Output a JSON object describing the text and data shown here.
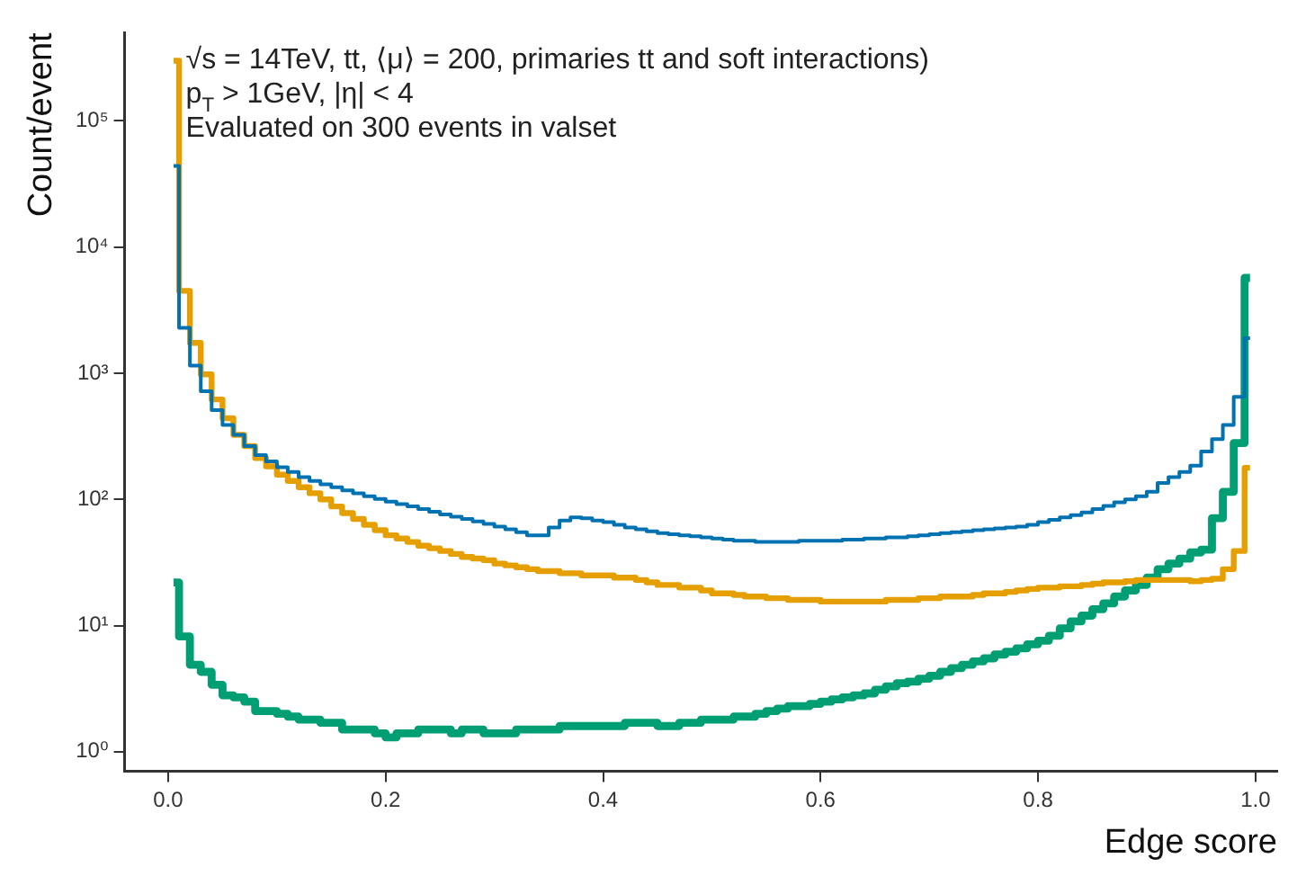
{
  "chart_data": {
    "type": "step",
    "xlabel": "Edge score",
    "ylabel": "Count/event",
    "annotations": [
      "√s = 14TeV, tt, ⟨μ⟩ = 200, primaries tt and soft interactions)",
      "p$_{T}$ > 1GeV, |η| < 4",
      "Evaluated on 300 events in valset"
    ],
    "x": [
      0.005,
      0.015,
      0.025,
      0.035,
      0.045,
      0.055,
      0.065,
      0.075,
      0.085,
      0.095,
      0.105,
      0.115,
      0.125,
      0.135,
      0.145,
      0.155,
      0.165,
      0.175,
      0.185,
      0.195,
      0.205,
      0.215,
      0.225,
      0.235,
      0.245,
      0.255,
      0.265,
      0.275,
      0.285,
      0.295,
      0.305,
      0.315,
      0.325,
      0.335,
      0.345,
      0.355,
      0.365,
      0.375,
      0.385,
      0.395,
      0.405,
      0.415,
      0.425,
      0.435,
      0.445,
      0.455,
      0.465,
      0.475,
      0.485,
      0.495,
      0.505,
      0.515,
      0.525,
      0.535,
      0.545,
      0.555,
      0.565,
      0.575,
      0.585,
      0.595,
      0.605,
      0.615,
      0.625,
      0.635,
      0.645,
      0.655,
      0.665,
      0.675,
      0.685,
      0.695,
      0.705,
      0.715,
      0.725,
      0.735,
      0.745,
      0.755,
      0.765,
      0.775,
      0.785,
      0.795,
      0.805,
      0.815,
      0.825,
      0.835,
      0.845,
      0.855,
      0.865,
      0.875,
      0.885,
      0.895,
      0.905,
      0.915,
      0.925,
      0.935,
      0.945,
      0.955,
      0.965,
      0.975,
      0.985,
      0.995
    ],
    "series": [
      {
        "color": "#0072b2",
        "values": [
          44000,
          2290,
          1150,
          720,
          510,
          390,
          325,
          265,
          225,
          200,
          180,
          165,
          150,
          140,
          132,
          125,
          118,
          112,
          106,
          101,
          96,
          92,
          88,
          84,
          80,
          76,
          73,
          70,
          67,
          64,
          61,
          58,
          55,
          52,
          52,
          60,
          68,
          72,
          71,
          68,
          66,
          63,
          60,
          58,
          56,
          54,
          53,
          52,
          51,
          50,
          49,
          48,
          47,
          47,
          46,
          46,
          46,
          46,
          47,
          47,
          47,
          47,
          48,
          48,
          49,
          49,
          50,
          50,
          51,
          52,
          53,
          54,
          55,
          56,
          57,
          58,
          59,
          60,
          61,
          63,
          66,
          69,
          72,
          75,
          79,
          84,
          89,
          95,
          100,
          106,
          115,
          135,
          150,
          165,
          185,
          240,
          300,
          390,
          650,
          1900
        ]
      },
      {
        "color": "#e69f00",
        "values": [
          300000,
          4500,
          1740,
          980,
          620,
          440,
          325,
          265,
          213,
          183,
          157,
          140,
          125,
          112,
          100,
          88,
          78,
          70,
          63,
          57,
          52,
          49,
          46,
          43,
          41,
          39,
          37,
          35,
          34,
          33,
          31,
          30,
          29,
          28,
          27,
          27,
          26,
          26,
          25,
          25,
          25,
          24,
          24,
          23,
          22,
          21,
          21,
          20,
          20,
          19,
          18,
          18,
          17.5,
          17,
          17,
          16.5,
          16.5,
          16,
          16,
          16,
          15.5,
          15.5,
          15.5,
          15.5,
          15.5,
          15.5,
          16,
          16,
          16,
          16.5,
          16.5,
          17,
          17,
          17,
          17.5,
          18,
          18,
          18.5,
          19,
          19.5,
          20,
          20,
          20.5,
          20.5,
          21,
          21.5,
          22,
          22,
          22.5,
          23,
          23,
          23,
          23,
          23,
          22.5,
          23,
          23.5,
          28,
          39,
          178
        ]
      },
      {
        "color": "#009e73",
        "values": [
          22,
          8.2,
          4.9,
          4.3,
          3.4,
          2.8,
          2.7,
          2.5,
          2.1,
          2.1,
          2.0,
          1.9,
          1.8,
          1.8,
          1.7,
          1.7,
          1.5,
          1.5,
          1.5,
          1.4,
          1.3,
          1.4,
          1.4,
          1.5,
          1.5,
          1.5,
          1.4,
          1.5,
          1.5,
          1.4,
          1.4,
          1.4,
          1.5,
          1.5,
          1.5,
          1.5,
          1.6,
          1.6,
          1.6,
          1.6,
          1.6,
          1.6,
          1.7,
          1.7,
          1.7,
          1.6,
          1.6,
          1.7,
          1.7,
          1.8,
          1.8,
          1.8,
          1.9,
          1.9,
          2.0,
          2.1,
          2.2,
          2.3,
          2.3,
          2.4,
          2.5,
          2.6,
          2.7,
          2.8,
          2.9,
          3.1,
          3.3,
          3.5,
          3.6,
          3.8,
          4.0,
          4.3,
          4.6,
          4.9,
          5.2,
          5.5,
          5.9,
          6.2,
          6.6,
          7.1,
          7.6,
          8.3,
          9.5,
          10.8,
          12,
          13.5,
          15,
          17,
          19,
          21,
          24,
          28,
          31,
          34,
          38,
          40,
          71,
          115,
          280,
          5700
        ]
      }
    ],
    "xlim": [
      -0.04,
      1.02
    ],
    "xticks": [
      {
        "value": 0,
        "label": "0.0"
      },
      {
        "value": 0.2,
        "label": "0.2"
      },
      {
        "value": 0.4,
        "label": "0.4"
      },
      {
        "value": 0.6,
        "label": "0.6"
      },
      {
        "value": 0.8,
        "label": "0.8"
      },
      {
        "value": 1,
        "label": "1.0"
      }
    ],
    "ylim": [
      0.7,
      500000
    ],
    "yticks": [
      {
        "value": 1,
        "label": "10⁰"
      },
      {
        "value": 10,
        "label": "10¹"
      },
      {
        "value": 100,
        "label": "10²"
      },
      {
        "value": 1000,
        "label": "10³"
      },
      {
        "value": 10000,
        "label": "10⁴"
      },
      {
        "value": 100000,
        "label": "10⁵"
      }
    ],
    "log": "y",
    "grid": false,
    "legend": false,
    "line_style": "solid",
    "marker": "none"
  }
}
